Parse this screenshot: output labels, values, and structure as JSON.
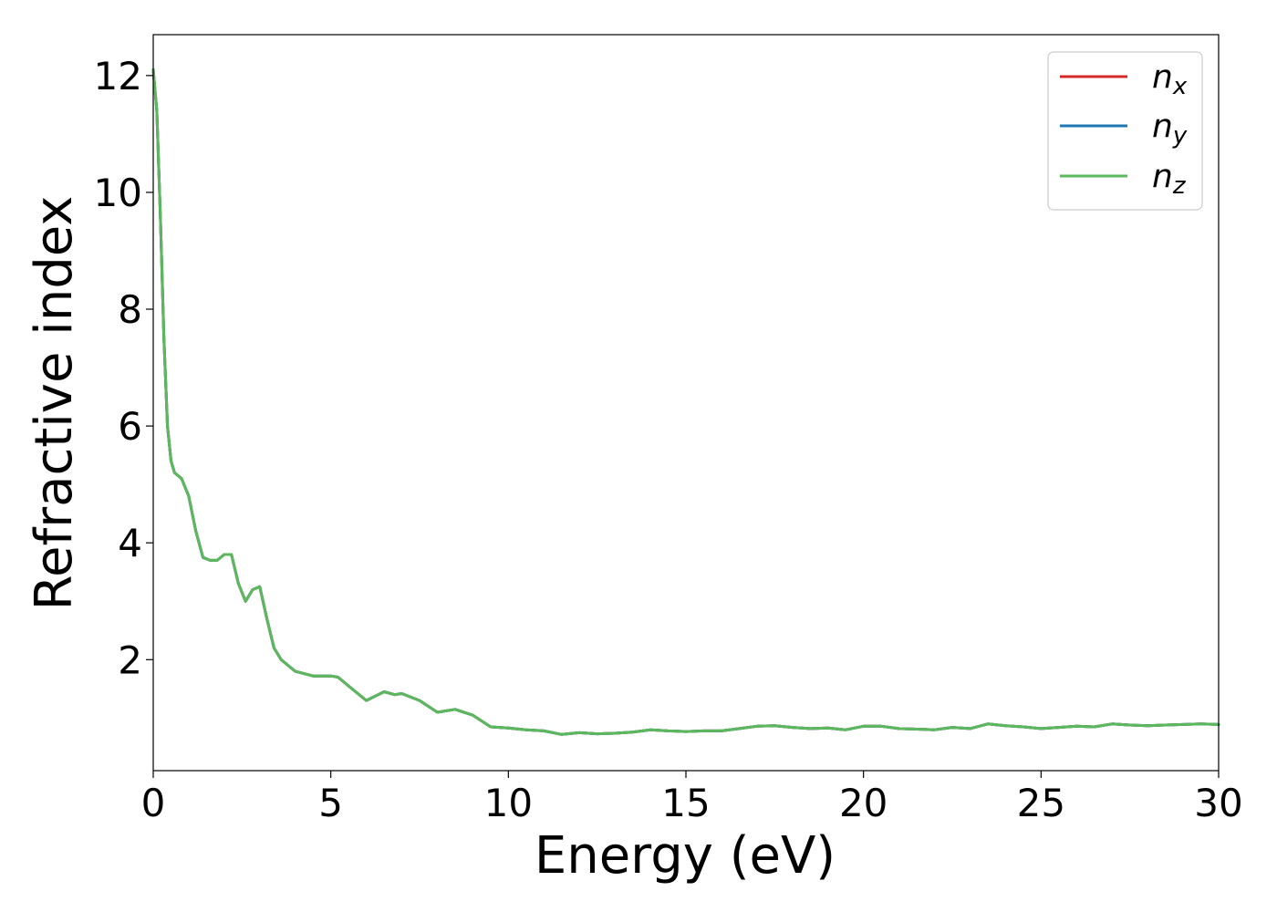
{
  "chart_data": {
    "type": "line",
    "title": "",
    "xlabel": "Energy (eV)",
    "ylabel": "Refractive index",
    "xlim": [
      0,
      30
    ],
    "ylim": [
      0.1,
      12.7
    ],
    "xticks": [
      0,
      5,
      10,
      15,
      20,
      25,
      30
    ],
    "xtick_labels": [
      "0",
      "5",
      "10",
      "15",
      "20",
      "25",
      "30"
    ],
    "yticks": [
      2,
      4,
      6,
      8,
      10,
      12
    ],
    "ytick_labels": [
      "2",
      "4",
      "6",
      "8",
      "10",
      "12"
    ],
    "grid": false,
    "legend_position": "top-right",
    "x": [
      0,
      0.1,
      0.2,
      0.3,
      0.4,
      0.5,
      0.6,
      0.7,
      0.8,
      1.0,
      1.2,
      1.4,
      1.6,
      1.8,
      2.0,
      2.2,
      2.4,
      2.6,
      2.8,
      3.0,
      3.2,
      3.4,
      3.6,
      4.0,
      4.5,
      5.0,
      5.2,
      5.5,
      6.0,
      6.5,
      6.8,
      7.0,
      7.5,
      8.0,
      8.5,
      9.0,
      9.5,
      10.0,
      10.5,
      11.0,
      11.5,
      12.0,
      12.5,
      13.0,
      13.5,
      14.0,
      14.5,
      15.0,
      15.5,
      16.0,
      16.5,
      17.0,
      17.5,
      18.0,
      18.5,
      19.0,
      19.5,
      20.0,
      20.5,
      21.0,
      21.5,
      22.0,
      22.5,
      23.0,
      23.5,
      24.0,
      24.5,
      25.0,
      25.5,
      26.0,
      26.5,
      27.0,
      27.5,
      28.0,
      28.5,
      29.0,
      29.5,
      30.0
    ],
    "series": [
      {
        "name": "n_x",
        "label_main": "n",
        "label_sub": "x",
        "color": "#d62728",
        "values": [
          12.1,
          11.4,
          9.6,
          7.5,
          6.0,
          5.4,
          5.2,
          5.15,
          5.1,
          4.8,
          4.2,
          3.75,
          3.7,
          3.7,
          3.8,
          3.8,
          3.3,
          3.0,
          3.2,
          3.25,
          2.7,
          2.2,
          2.0,
          1.8,
          1.72,
          1.72,
          1.7,
          1.55,
          1.3,
          1.45,
          1.4,
          1.42,
          1.3,
          1.1,
          1.15,
          1.05,
          0.85,
          0.83,
          0.8,
          0.78,
          0.72,
          0.75,
          0.73,
          0.74,
          0.76,
          0.8,
          0.78,
          0.77,
          0.78,
          0.78,
          0.82,
          0.86,
          0.87,
          0.84,
          0.82,
          0.83,
          0.8,
          0.86,
          0.86,
          0.82,
          0.81,
          0.8,
          0.84,
          0.82,
          0.9,
          0.87,
          0.85,
          0.82,
          0.84,
          0.86,
          0.85,
          0.9,
          0.88,
          0.87,
          0.88,
          0.89,
          0.9,
          0.89
        ]
      },
      {
        "name": "n_y",
        "label_main": "n",
        "label_sub": "y",
        "color": "#1f77b4",
        "values": [
          12.1,
          11.4,
          9.6,
          7.5,
          6.0,
          5.4,
          5.2,
          5.15,
          5.1,
          4.8,
          4.2,
          3.75,
          3.7,
          3.7,
          3.8,
          3.8,
          3.3,
          3.0,
          3.2,
          3.25,
          2.7,
          2.2,
          2.0,
          1.8,
          1.72,
          1.72,
          1.7,
          1.55,
          1.3,
          1.45,
          1.4,
          1.42,
          1.3,
          1.1,
          1.15,
          1.05,
          0.85,
          0.83,
          0.8,
          0.78,
          0.72,
          0.75,
          0.73,
          0.74,
          0.76,
          0.8,
          0.78,
          0.77,
          0.78,
          0.78,
          0.82,
          0.86,
          0.87,
          0.84,
          0.82,
          0.83,
          0.8,
          0.86,
          0.86,
          0.82,
          0.81,
          0.8,
          0.84,
          0.82,
          0.9,
          0.87,
          0.85,
          0.82,
          0.84,
          0.86,
          0.85,
          0.9,
          0.88,
          0.87,
          0.88,
          0.89,
          0.9,
          0.89
        ]
      },
      {
        "name": "n_z",
        "label_main": "n",
        "label_sub": "z",
        "color": "#5cb85c",
        "values": [
          12.1,
          11.4,
          9.6,
          7.5,
          6.0,
          5.4,
          5.2,
          5.15,
          5.1,
          4.8,
          4.2,
          3.75,
          3.7,
          3.7,
          3.8,
          3.8,
          3.3,
          3.0,
          3.2,
          3.25,
          2.7,
          2.2,
          2.0,
          1.8,
          1.72,
          1.72,
          1.7,
          1.55,
          1.3,
          1.45,
          1.4,
          1.42,
          1.3,
          1.1,
          1.15,
          1.05,
          0.85,
          0.83,
          0.8,
          0.78,
          0.72,
          0.75,
          0.73,
          0.74,
          0.76,
          0.8,
          0.78,
          0.77,
          0.78,
          0.78,
          0.82,
          0.86,
          0.87,
          0.84,
          0.82,
          0.83,
          0.8,
          0.86,
          0.86,
          0.82,
          0.81,
          0.8,
          0.84,
          0.82,
          0.9,
          0.87,
          0.85,
          0.82,
          0.84,
          0.86,
          0.85,
          0.9,
          0.88,
          0.87,
          0.88,
          0.89,
          0.9,
          0.89
        ]
      }
    ]
  }
}
